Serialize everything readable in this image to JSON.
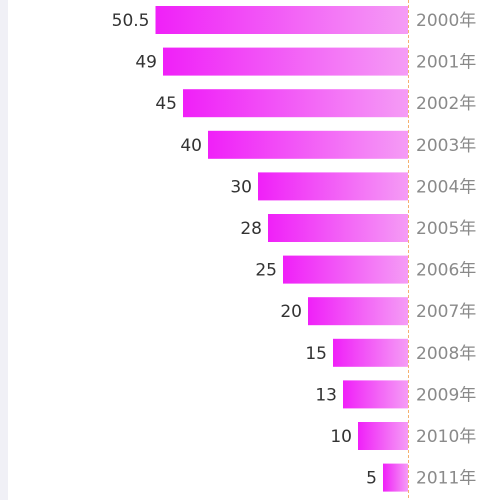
{
  "chart_data": {
    "type": "bar",
    "orientation": "horizontal",
    "categories": [
      "2000年",
      "2001年",
      "2002年",
      "2003年",
      "2004年",
      "2005年",
      "2006年",
      "2007年",
      "2008年",
      "2009年",
      "2010年",
      "2011年"
    ],
    "values": [
      50.5,
      49,
      45,
      40,
      30,
      28,
      25,
      20,
      15,
      13,
      10,
      5
    ],
    "xlim": [
      0,
      55
    ],
    "bar_direction": "right-to-left",
    "grid": false,
    "title": "",
    "xlabel": "",
    "ylabel": "",
    "colors": {
      "bar_start": "#f020f8",
      "bar_end": "#f59cf5",
      "value_label": "#333333",
      "category_label": "#8a8a8a",
      "baseline": "#f5b070"
    }
  }
}
